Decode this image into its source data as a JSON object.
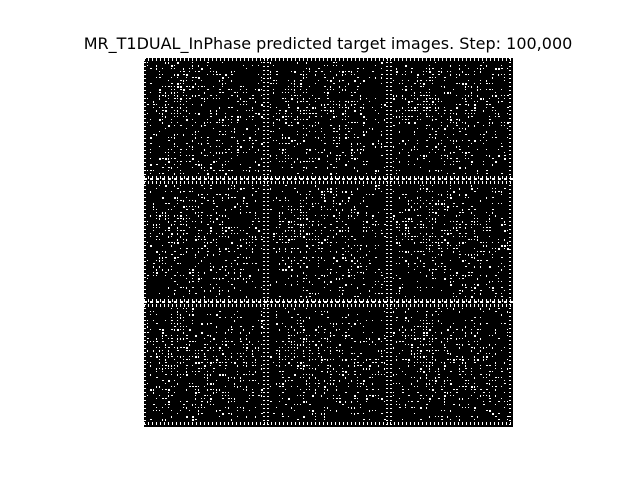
{
  "figure": {
    "title": "MR_T1DUAL_InPhase predicted target images. Step: 100,000",
    "grid": {
      "rows": 3,
      "cols": 3,
      "background_color": "#000000",
      "foreground_color": "#ffffff"
    }
  }
}
